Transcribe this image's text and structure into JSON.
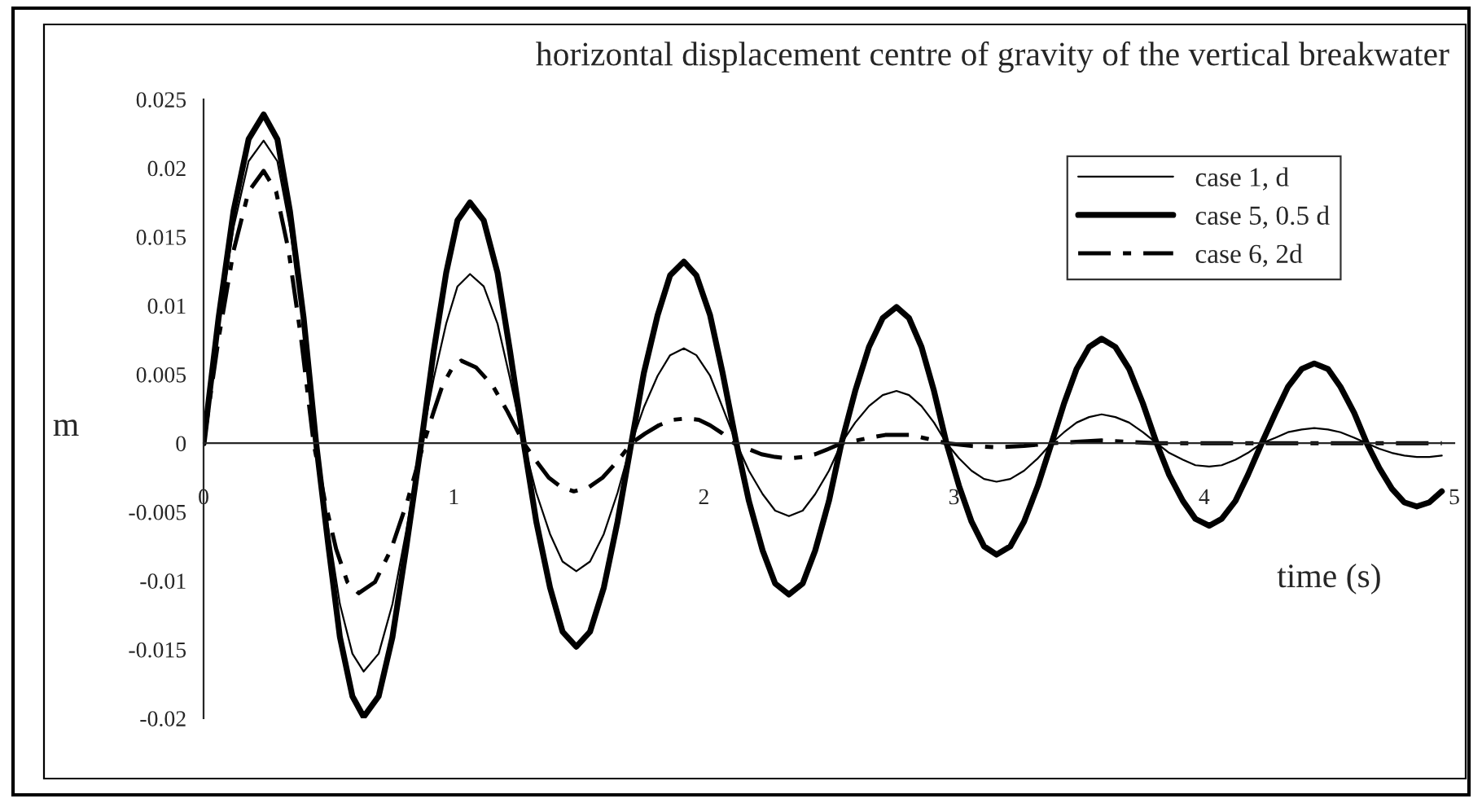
{
  "chart_data": {
    "type": "line",
    "title": "horizontal displacement centre of gravity of the vertical breakwater",
    "xlabel": "time (s)",
    "ylabel": "m",
    "xlim": [
      0,
      5
    ],
    "xticks": [
      0,
      1,
      2,
      3,
      4,
      5
    ],
    "ylim": [
      -0.02,
      0.025
    ],
    "yticks": [
      -0.02,
      -0.015,
      -0.01,
      -0.005,
      0,
      0.005,
      0.01,
      0.015,
      0.02,
      0.025
    ],
    "grid": false,
    "legend": "top right",
    "marker": "none",
    "series": [
      {
        "name": "case 1, d",
        "color": "#000000",
        "line_style": "solid",
        "x": [
          0,
          0.06,
          0.12,
          0.18,
          0.24,
          0.295,
          0.345,
          0.4,
          0.45,
          0.5,
          0.545,
          0.595,
          0.64,
          0.7,
          0.755,
          0.81,
          0.87,
          0.92,
          0.97,
          1.015,
          1.065,
          1.12,
          1.175,
          1.225,
          1.28,
          1.33,
          1.385,
          1.435,
          1.49,
          1.545,
          1.6,
          1.655,
          1.71,
          1.76,
          1.815,
          1.865,
          1.92,
          1.97,
          2.025,
          2.075,
          2.13,
          2.18,
          2.235,
          2.285,
          2.34,
          2.395,
          2.445,
          2.5,
          2.55,
          2.605,
          2.66,
          2.715,
          2.77,
          2.82,
          2.87,
          2.92,
          2.97,
          3.02,
          3.07,
          3.12,
          3.17,
          3.225,
          3.28,
          3.335,
          3.39,
          3.44,
          3.49,
          3.54,
          3.59,
          3.645,
          3.7,
          3.755,
          3.81,
          3.86,
          3.915,
          3.965,
          4.02,
          4.07,
          4.125,
          4.175,
          4.23,
          4.285,
          4.335,
          4.39,
          4.44,
          4.495,
          4.545,
          4.6,
          4.65,
          4.7,
          4.75,
          4.8,
          4.85,
          4.9,
          4.95
        ],
        "values": [
          0,
          0.0085,
          0.0157,
          0.0205,
          0.022,
          0.0205,
          0.0157,
          0.0085,
          0,
          -0.0064,
          -0.0117,
          -0.0153,
          -0.0166,
          -0.0153,
          -0.0117,
          -0.0064,
          0,
          0.0047,
          0.0087,
          0.0114,
          0.0123,
          0.0114,
          0.0087,
          0.0047,
          0,
          -0.0036,
          -0.0066,
          -0.0086,
          -0.0093,
          -0.0086,
          -0.0066,
          -0.0036,
          0,
          0.0026,
          0.0049,
          0.0064,
          0.0069,
          0.0064,
          0.0049,
          0.0026,
          0,
          -0.002,
          -0.0037,
          -0.0049,
          -0.0053,
          -0.0049,
          -0.0037,
          -0.002,
          0,
          0.0015,
          0.0027,
          0.0035,
          0.0038,
          0.0035,
          0.0027,
          0.0015,
          0,
          -0.0011,
          -0.002,
          -0.0026,
          -0.0028,
          -0.0026,
          -0.002,
          -0.0011,
          0,
          0.0008,
          0.0015,
          0.0019,
          0.0021,
          0.0019,
          0.0015,
          0.0008,
          0,
          -0.0007,
          -0.0012,
          -0.0016,
          -0.0017,
          -0.0016,
          -0.0012,
          -0.0007,
          0,
          0.0004,
          0.0008,
          0.001,
          0.0011,
          0.001,
          0.0008,
          0.0004,
          0,
          -0.0004,
          -0.0007,
          -0.0009,
          -0.001,
          -0.001,
          -0.0009
        ]
      },
      {
        "name": "case 5, 0.5 d",
        "color": "#000000",
        "line_style": "solid",
        "x": [
          0,
          0.06,
          0.12,
          0.18,
          0.24,
          0.295,
          0.345,
          0.4,
          0.45,
          0.5,
          0.545,
          0.595,
          0.64,
          0.7,
          0.755,
          0.81,
          0.87,
          0.92,
          0.97,
          1.015,
          1.065,
          1.12,
          1.175,
          1.225,
          1.28,
          1.33,
          1.385,
          1.435,
          1.49,
          1.545,
          1.6,
          1.655,
          1.71,
          1.76,
          1.815,
          1.865,
          1.92,
          1.97,
          2.025,
          2.075,
          2.13,
          2.18,
          2.235,
          2.285,
          2.34,
          2.395,
          2.445,
          2.5,
          2.55,
          2.605,
          2.66,
          2.715,
          2.77,
          2.82,
          2.87,
          2.92,
          2.97,
          3.02,
          3.07,
          3.12,
          3.17,
          3.225,
          3.28,
          3.335,
          3.39,
          3.44,
          3.49,
          3.54,
          3.59,
          3.645,
          3.7,
          3.755,
          3.81,
          3.86,
          3.915,
          3.965,
          4.02,
          4.07,
          4.125,
          4.175,
          4.23,
          4.285,
          4.335,
          4.39,
          4.44,
          4.495,
          4.545,
          4.6,
          4.65,
          4.7,
          4.75,
          4.8,
          4.85,
          4.9,
          4.95
        ],
        "values": [
          0,
          0.0091,
          0.0169,
          0.0221,
          0.0239,
          0.0221,
          0.0169,
          0.0091,
          0,
          -0.0076,
          -0.0141,
          -0.0184,
          -0.0199,
          -0.0184,
          -0.0141,
          -0.0076,
          0,
          0.0067,
          0.0124,
          0.0162,
          0.0175,
          0.0162,
          0.0124,
          0.0067,
          0,
          -0.0057,
          -0.0105,
          -0.0137,
          -0.0148,
          -0.0137,
          -0.0105,
          -0.0057,
          0,
          0.0051,
          0.0093,
          0.0122,
          0.0132,
          0.0122,
          0.0093,
          0.0051,
          0,
          -0.0042,
          -0.0078,
          -0.0102,
          -0.011,
          -0.0102,
          -0.0078,
          -0.0042,
          0,
          0.0038,
          0.007,
          0.0091,
          0.0099,
          0.0091,
          0.007,
          0.0038,
          0,
          -0.0031,
          -0.0057,
          -0.0075,
          -0.0081,
          -0.0075,
          -0.0057,
          -0.0031,
          0,
          0.0029,
          0.0054,
          0.007,
          0.0076,
          0.007,
          0.0054,
          0.0029,
          0,
          -0.0023,
          -0.0042,
          -0.0055,
          -0.006,
          -0.0055,
          -0.0042,
          -0.0023,
          0,
          0.0022,
          0.0041,
          0.0054,
          0.0058,
          0.0054,
          0.0041,
          0.0022,
          0,
          -0.0018,
          -0.0033,
          -0.0043,
          -0.0046,
          -0.0043,
          -0.0035
        ]
      },
      {
        "name": "case 6, 2d",
        "color": "#000000",
        "line_style": "dashdot",
        "x": [
          0,
          0.06,
          0.12,
          0.18,
          0.24,
          0.29,
          0.34,
          0.39,
          0.44,
          0.485,
          0.53,
          0.575,
          0.62,
          0.685,
          0.75,
          0.815,
          0.88,
          0.92,
          0.955,
          0.995,
          1.03,
          1.09,
          1.155,
          1.215,
          1.28,
          1.33,
          1.38,
          1.43,
          1.48,
          1.54,
          1.595,
          1.655,
          1.71,
          1.765,
          1.82,
          1.875,
          1.93,
          1.98,
          2.025,
          2.075,
          2.12,
          2.175,
          2.23,
          2.285,
          2.34,
          2.395,
          2.445,
          2.5,
          2.55,
          2.61,
          2.665,
          2.725,
          2.78,
          2.83,
          2.875,
          2.925,
          2.97,
          3.07,
          3.17,
          3.28,
          3.39,
          3.49,
          3.59,
          3.7,
          3.81,
          4.4,
          4.95
        ],
        "values": [
          0,
          0.0076,
          0.014,
          0.0183,
          0.0198,
          0.0183,
          0.014,
          0.0076,
          0,
          -0.0042,
          -0.0077,
          -0.0101,
          -0.0109,
          -0.0101,
          -0.0077,
          -0.0042,
          0,
          0.0023,
          0.0042,
          0.0055,
          0.006,
          0.0055,
          0.0042,
          0.0023,
          0,
          -0.0013,
          -0.0025,
          -0.0032,
          -0.0035,
          -0.0032,
          -0.0025,
          -0.0013,
          0,
          0.0007,
          0.0013,
          0.0017,
          0.0018,
          0.0017,
          0.0013,
          0.0007,
          0,
          -0.0004,
          -0.0008,
          -0.001,
          -0.0011,
          -0.001,
          -0.0008,
          -0.0004,
          0,
          0.0002,
          0.0004,
          0.0006,
          0.0006,
          0.0006,
          0.0004,
          0.0002,
          0,
          -0.0002,
          -0.0003,
          -0.0002,
          0,
          0.0001,
          0.0002,
          0.0001,
          0,
          0,
          0
        ]
      }
    ]
  }
}
